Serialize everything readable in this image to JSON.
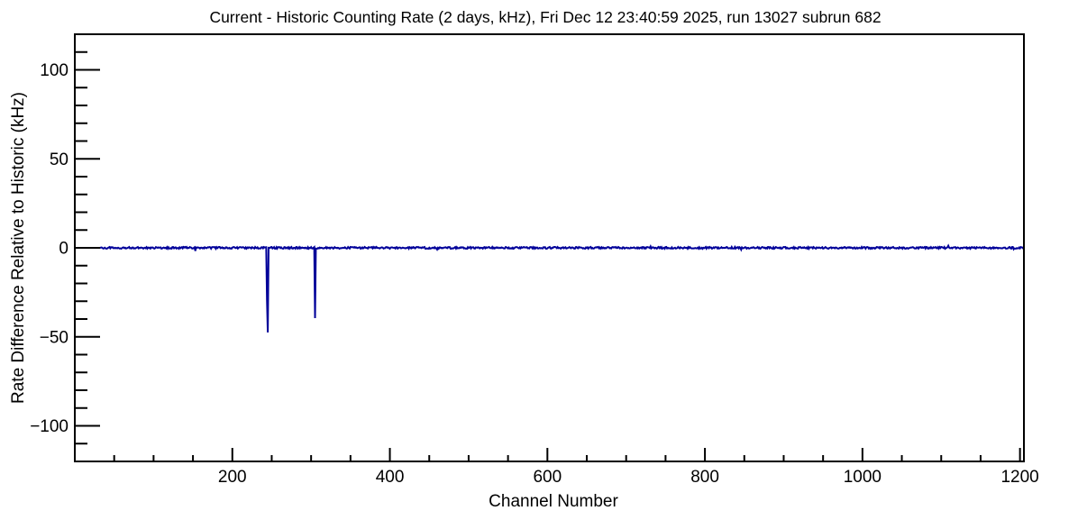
{
  "colors": {
    "series_line": "#000099",
    "axis": "#000000",
    "background": "#ffffff"
  },
  "chart_data": {
    "type": "line",
    "title": "Current - Historic Counting Rate (2 days, kHz), Fri Dec 12 23:40:59 2025, run 13027 subrun 682",
    "xlabel": "Channel Number",
    "ylabel": "Rate Difference Relative to Historic (kHz)",
    "xlim": [
      0,
      1205
    ],
    "ylim": [
      -120,
      120
    ],
    "grid": false,
    "legend": "none",
    "x_major_ticks": [
      200,
      400,
      600,
      800,
      1000,
      1200
    ],
    "x_tick_labels": [
      "200",
      "400",
      "600",
      "800",
      "1000",
      "1200"
    ],
    "x_minor_step": 50,
    "y_major_ticks": [
      100,
      50,
      0,
      -50,
      -100
    ],
    "y_tick_labels": [
      "100",
      "50",
      "0",
      "−50",
      "−100"
    ],
    "y_minor_step": 10,
    "baseline": {
      "value": 0,
      "noise_amplitude": 0.5,
      "noise_start_channel": 33,
      "noise_end_channel": 1205,
      "seed": 7
    },
    "spikes": [
      {
        "channel": 244,
        "value": -29.5
      },
      {
        "channel": 245,
        "value": -47.5
      },
      {
        "channel": 305,
        "value": -39.5
      }
    ],
    "minor_features": [
      {
        "channel": 153,
        "value": -1.7
      },
      {
        "channel": 460,
        "value": -0.9
      },
      {
        "channel": 731,
        "value": 0.8
      },
      {
        "channel": 846,
        "value": -1.0
      },
      {
        "channel": 1109,
        "value": 1.2
      },
      {
        "channel": 1192,
        "value": -0.8
      }
    ],
    "zero_marker_tick": {
      "value": 0
    }
  }
}
